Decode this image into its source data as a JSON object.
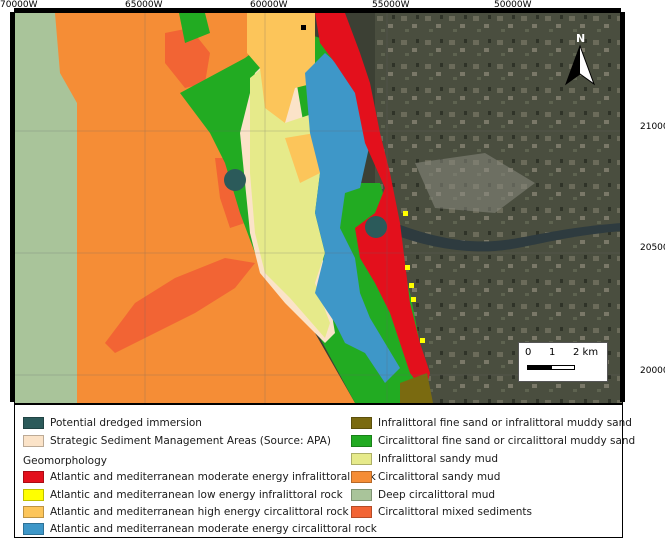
{
  "map": {
    "top_coords": [
      "70000W",
      "65000W",
      "60000W",
      "55000W",
      "50000W"
    ],
    "right_coords": [
      "210000N",
      "205000N",
      "200000N"
    ],
    "north_label": "N",
    "scale": {
      "labels": [
        "0",
        "1",
        "2 km"
      ]
    }
  },
  "legend": {
    "col1": [
      {
        "label": "Potential dredged immersion",
        "color": "#2b5a5a"
      },
      {
        "label": "Strategic Sediment Management Areas (Source: APA)",
        "color": "#fbe3c8"
      }
    ],
    "geomorphology_header": "Geomorphology",
    "geomorphology_left": [
      {
        "label": "Atlantic and mediterranean moderate energy infralittoral rock",
        "color": "#e3101c"
      },
      {
        "label": "Atlantic and mediterranean low energy infralittoral rock",
        "color": "#ffff00"
      },
      {
        "label": "Atlantic and mediterranean high energy circalittoral rock",
        "color": "#fcc55a"
      },
      {
        "label": "Atlantic and mediterranean moderate energy circalittoral rock",
        "color": "#3e97c8"
      }
    ],
    "geomorphology_right": [
      {
        "label": "Infralittoral fine sand or infralittoral muddy sand",
        "color": "#7a6a10"
      },
      {
        "label": "Circalittoral fine sand or circalittoral muddy sand",
        "color": "#22ab22"
      },
      {
        "label": "Infralittoral sandy mud",
        "color": "#e6ea8a"
      },
      {
        "label": "Circalittoral sandy mud",
        "color": "#f58d36"
      },
      {
        "label": "Deep circalittoral mud",
        "color": "#a9c49a"
      },
      {
        "label": "Circalittoral mixed sediments",
        "color": "#f26434"
      }
    ]
  }
}
